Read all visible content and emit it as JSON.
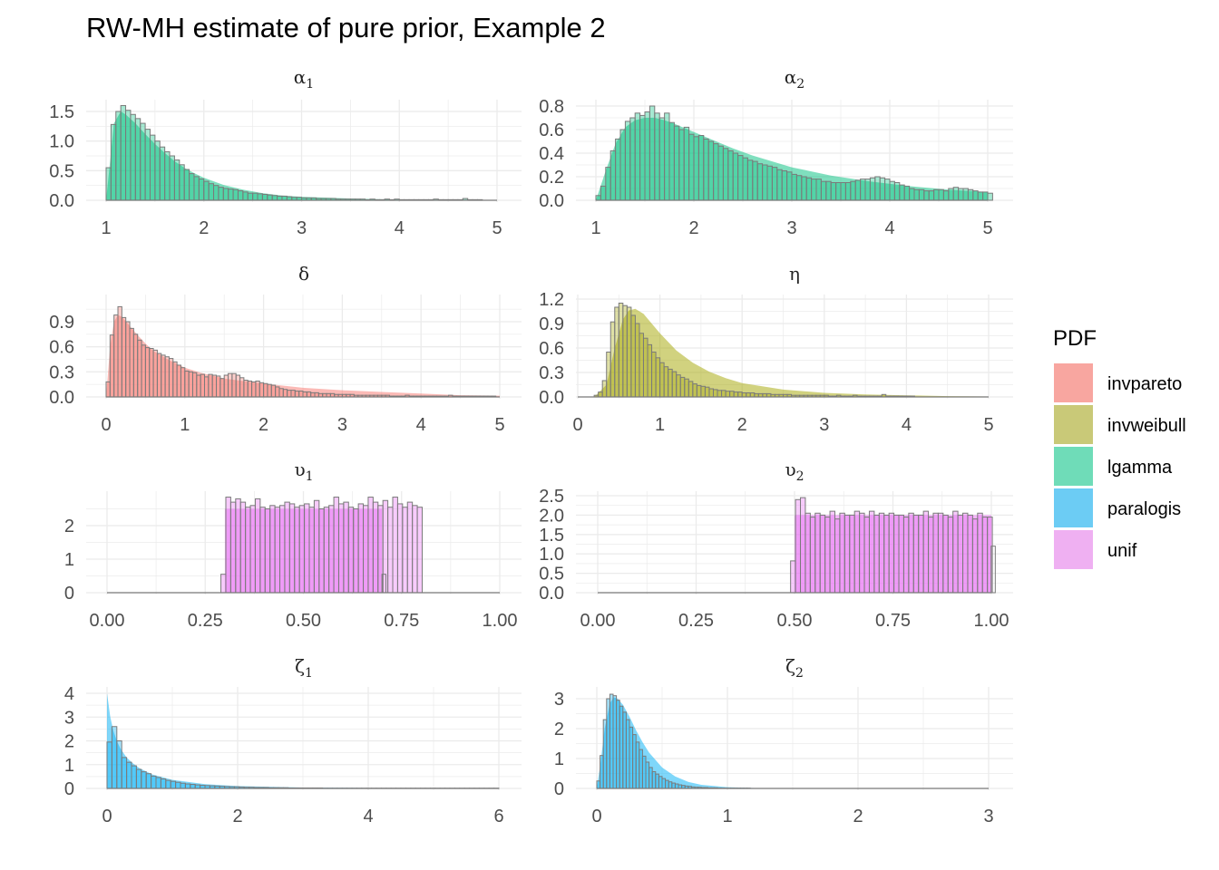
{
  "title": "RW-MH estimate of pure prior, Example 2",
  "legend": {
    "title": "PDF",
    "placement": "right",
    "entries": [
      {
        "label": "invpareto",
        "color": "#F8A6A0"
      },
      {
        "label": "invweibull",
        "color": "#C9C978"
      },
      {
        "label": "lgamma",
        "color": "#6FDCB8"
      },
      {
        "label": "paralogis",
        "color": "#6CCCF4"
      },
      {
        "label": "unif",
        "color": "#EFB0F2"
      }
    ]
  },
  "colors": {
    "invpareto": "#F8766D",
    "invweibull": "#A3A500",
    "lgamma": "#00BF7D",
    "paralogis": "#00B0F6",
    "unif": "#E76BF3",
    "histogram_outline": "#7a7a7a",
    "grid": "#ebebeb",
    "axis_text": "#4d4d4d"
  },
  "chart_data": [
    {
      "type": "histogram+density",
      "panel": "alpha1",
      "title": "α",
      "subscript": "1",
      "pdf": "lgamma",
      "xlim": [
        1,
        5
      ],
      "x_ticks": [
        1,
        2,
        3,
        4,
        5
      ],
      "x_tick_labels": [
        "1",
        "2",
        "3",
        "4",
        "5"
      ],
      "ylim": [
        0,
        1.6
      ],
      "y_ticks": [
        0,
        0.5,
        1.0,
        1.5
      ],
      "y_tick_labels": [
        "0.0",
        "0.5",
        "1.0",
        "1.5"
      ],
      "bin_start": 1.0,
      "bin_width": 0.05,
      "hist": [
        0.55,
        1.28,
        1.5,
        1.6,
        1.52,
        1.45,
        1.38,
        1.3,
        1.2,
        1.1,
        1.0,
        0.9,
        0.82,
        0.75,
        0.68,
        0.6,
        0.52,
        0.45,
        0.4,
        0.36,
        0.32,
        0.28,
        0.25,
        0.22,
        0.2,
        0.19,
        0.18,
        0.16,
        0.14,
        0.12,
        0.12,
        0.11,
        0.1,
        0.09,
        0.08,
        0.07,
        0.07,
        0.06,
        0.05,
        0.05,
        0.04,
        0.04,
        0.04,
        0.03,
        0.03,
        0.03,
        0.03,
        0.02,
        0.02,
        0.02,
        0.02,
        0.02,
        0.02,
        0.01,
        0.02,
        0.01,
        0.01,
        0.02,
        0.01,
        0.02,
        0.01,
        0.01,
        0.01,
        0.01,
        0.01,
        0.01,
        0.01,
        0.02,
        0.01,
        0.01,
        0.01,
        0.01,
        0.01,
        0.03,
        0.01,
        0.01,
        0.01,
        0.0,
        0.0,
        0.0
      ],
      "density_x": [
        1.0,
        1.08,
        1.15,
        1.2,
        1.3,
        1.4,
        1.5,
        1.6,
        1.7,
        1.8,
        1.9,
        2.0,
        2.2,
        2.4,
        2.6,
        2.8,
        3.0,
        3.5,
        4.0,
        4.5,
        5.0
      ],
      "density_y": [
        0.0,
        1.3,
        1.5,
        1.45,
        1.3,
        1.12,
        0.95,
        0.8,
        0.66,
        0.55,
        0.46,
        0.38,
        0.26,
        0.18,
        0.12,
        0.08,
        0.06,
        0.03,
        0.01,
        0.005,
        0.0
      ]
    },
    {
      "type": "histogram+density",
      "panel": "alpha2",
      "title": "α",
      "subscript": "2",
      "pdf": "lgamma",
      "xlim": [
        1,
        5
      ],
      "x_ticks": [
        1,
        2,
        3,
        4,
        5
      ],
      "x_tick_labels": [
        "1",
        "2",
        "3",
        "4",
        "5"
      ],
      "ylim": [
        0,
        0.8
      ],
      "y_ticks": [
        0,
        0.2,
        0.4,
        0.6,
        0.8
      ],
      "y_tick_labels": [
        "0.0",
        "0.2",
        "0.4",
        "0.6",
        "0.8"
      ],
      "bin_start": 1.0,
      "bin_width": 0.05,
      "hist": [
        0.04,
        0.12,
        0.28,
        0.42,
        0.52,
        0.6,
        0.67,
        0.7,
        0.74,
        0.72,
        0.75,
        0.8,
        0.74,
        0.7,
        0.74,
        0.66,
        0.63,
        0.6,
        0.62,
        0.56,
        0.54,
        0.55,
        0.52,
        0.5,
        0.48,
        0.46,
        0.44,
        0.42,
        0.4,
        0.38,
        0.36,
        0.34,
        0.33,
        0.31,
        0.3,
        0.29,
        0.28,
        0.26,
        0.25,
        0.24,
        0.22,
        0.21,
        0.2,
        0.19,
        0.18,
        0.18,
        0.16,
        0.16,
        0.15,
        0.15,
        0.15,
        0.15,
        0.16,
        0.17,
        0.18,
        0.18,
        0.19,
        0.2,
        0.19,
        0.18,
        0.16,
        0.15,
        0.13,
        0.12,
        0.1,
        0.09,
        0.09,
        0.08,
        0.08,
        0.09,
        0.09,
        0.08,
        0.1,
        0.11,
        0.1,
        0.1,
        0.09,
        0.08,
        0.07,
        0.07,
        0.06
      ],
      "density_x": [
        1.0,
        1.1,
        1.2,
        1.3,
        1.4,
        1.5,
        1.6,
        1.7,
        1.8,
        2.0,
        2.2,
        2.4,
        2.6,
        2.8,
        3.0,
        3.4,
        3.8,
        4.2,
        4.6,
        5.0
      ],
      "density_y": [
        0.0,
        0.25,
        0.48,
        0.62,
        0.68,
        0.7,
        0.7,
        0.68,
        0.65,
        0.58,
        0.51,
        0.44,
        0.38,
        0.33,
        0.28,
        0.21,
        0.16,
        0.12,
        0.09,
        0.07
      ]
    },
    {
      "type": "histogram+density",
      "panel": "delta",
      "title": "δ",
      "subscript": "",
      "pdf": "invpareto",
      "xlim": [
        0,
        5
      ],
      "x_ticks": [
        0,
        1,
        2,
        3,
        4,
        5
      ],
      "x_tick_labels": [
        "0",
        "1",
        "2",
        "3",
        "4",
        "5"
      ],
      "ylim": [
        0,
        1.0
      ],
      "y_ticks": [
        0,
        0.3,
        0.6,
        0.9
      ],
      "y_tick_labels": [
        "0.0",
        "0.3",
        "0.6",
        "0.9"
      ],
      "bin_start": 0.0,
      "bin_width": 0.05,
      "hist": [
        0.18,
        0.74,
        0.98,
        1.08,
        0.95,
        0.9,
        0.82,
        0.75,
        0.68,
        0.62,
        0.59,
        0.58,
        0.56,
        0.52,
        0.5,
        0.48,
        0.46,
        0.42,
        0.38,
        0.35,
        0.31,
        0.3,
        0.29,
        0.26,
        0.27,
        0.24,
        0.27,
        0.26,
        0.25,
        0.22,
        0.26,
        0.28,
        0.28,
        0.26,
        0.23,
        0.2,
        0.19,
        0.18,
        0.19,
        0.17,
        0.16,
        0.15,
        0.14,
        0.12,
        0.1,
        0.09,
        0.08,
        0.08,
        0.07,
        0.07,
        0.06,
        0.06,
        0.05,
        0.05,
        0.04,
        0.04,
        0.04,
        0.04,
        0.03,
        0.03,
        0.03,
        0.03,
        0.03,
        0.02,
        0.02,
        0.02,
        0.02,
        0.02,
        0.02,
        0.02,
        0.02,
        0.02,
        0.01,
        0.01,
        0.01,
        0.01,
        0.02,
        0.01,
        0.01,
        0.01,
        0.01,
        0.01,
        0.01,
        0.01,
        0.01,
        0.01,
        0.01,
        0.02,
        0.01,
        0.01,
        0.01,
        0.01,
        0.01,
        0.01,
        0.01,
        0.01,
        0.01,
        0.01,
        0.01,
        0.0
      ],
      "density_x": [
        0.0,
        0.05,
        0.1,
        0.15,
        0.2,
        0.3,
        0.4,
        0.5,
        0.6,
        0.8,
        1.0,
        1.2,
        1.5,
        2.0,
        2.5,
        3.0,
        3.5,
        4.0,
        4.5,
        5.0
      ],
      "density_y": [
        0.0,
        0.6,
        0.9,
        0.98,
        0.96,
        0.85,
        0.74,
        0.64,
        0.55,
        0.44,
        0.35,
        0.29,
        0.22,
        0.16,
        0.11,
        0.08,
        0.06,
        0.04,
        0.02,
        0.015
      ]
    },
    {
      "type": "histogram+density",
      "panel": "eta",
      "title": "η",
      "subscript": "",
      "pdf": "invweibull",
      "xlim": [
        0,
        5
      ],
      "x_ticks": [
        0,
        1,
        2,
        3,
        4,
        5
      ],
      "x_tick_labels": [
        "0",
        "1",
        "2",
        "3",
        "4",
        "5"
      ],
      "ylim": [
        0,
        1.2
      ],
      "y_ticks": [
        0,
        0.3,
        0.6,
        0.9,
        1.2
      ],
      "y_tick_labels": [
        "0.0",
        "0.3",
        "0.6",
        "0.9",
        "1.2"
      ],
      "bin_start": 0.2,
      "bin_width": 0.05,
      "hist": [
        0.02,
        0.06,
        0.2,
        0.55,
        0.92,
        1.1,
        1.15,
        1.12,
        1.1,
        1.0,
        0.9,
        0.78,
        0.72,
        0.64,
        0.55,
        0.48,
        0.42,
        0.37,
        0.34,
        0.31,
        0.27,
        0.24,
        0.22,
        0.19,
        0.16,
        0.14,
        0.13,
        0.12,
        0.1,
        0.09,
        0.08,
        0.08,
        0.07,
        0.07,
        0.06,
        0.06,
        0.05,
        0.05,
        0.05,
        0.04,
        0.04,
        0.04,
        0.04,
        0.03,
        0.03,
        0.03,
        0.03,
        0.03,
        0.02,
        0.02,
        0.02,
        0.02,
        0.02,
        0.02,
        0.02,
        0.02,
        0.02,
        0.01,
        0.01,
        0.02,
        0.01,
        0.01,
        0.01,
        0.02,
        0.01,
        0.01,
        0.01,
        0.01,
        0.01,
        0.01,
        0.03,
        0.01,
        0.01,
        0.01,
        0.01,
        0.01,
        0.01,
        0.01
      ],
      "density_x": [
        0.2,
        0.35,
        0.45,
        0.55,
        0.62,
        0.7,
        0.8,
        0.9,
        1.0,
        1.2,
        1.4,
        1.6,
        1.8,
        2.0,
        2.5,
        3.0,
        3.5,
        4.0,
        4.5,
        5.0
      ],
      "density_y": [
        0.0,
        0.15,
        0.6,
        0.95,
        1.06,
        1.08,
        1.02,
        0.9,
        0.78,
        0.57,
        0.42,
        0.31,
        0.23,
        0.17,
        0.09,
        0.05,
        0.03,
        0.02,
        0.01,
        0.005
      ]
    },
    {
      "type": "histogram+density",
      "panel": "upsilon1",
      "title": "υ",
      "subscript": "1",
      "pdf": "unif",
      "xlim": [
        0,
        1
      ],
      "x_ticks": [
        0,
        0.25,
        0.5,
        0.75,
        1.0
      ],
      "x_tick_labels": [
        "0.00",
        "0.25",
        "0.50",
        "0.75",
        "1.00"
      ],
      "ylim": [
        0,
        3
      ],
      "y_ticks": [
        0,
        1,
        2
      ],
      "y_tick_labels": [
        "0",
        "1",
        "2"
      ],
      "bin_start": 0.29,
      "bin_width": 0.0125,
      "hist": [
        0.55,
        2.85,
        2.7,
        2.8,
        2.7,
        2.55,
        2.6,
        2.8,
        2.55,
        2.5,
        2.6,
        2.55,
        2.6,
        2.7,
        2.65,
        2.55,
        2.6,
        2.65,
        2.55,
        2.75,
        2.5,
        2.55,
        2.6,
        2.85,
        2.65,
        2.7,
        2.55,
        2.5,
        2.65,
        2.6,
        2.85,
        2.7,
        2.6,
        2.75,
        2.55,
        2.85,
        2.65,
        2.55,
        2.7,
        2.6,
        2.55
      ],
      "hist_tail": {
        "x0": 0.7,
        "x1": 0.71,
        "value": 0.55
      },
      "density_x": [
        0.3,
        0.7
      ],
      "density_y": [
        2.5,
        2.5
      ]
    },
    {
      "type": "histogram+density",
      "panel": "upsilon2",
      "title": "υ",
      "subscript": "2",
      "pdf": "unif",
      "xlim": [
        0,
        1
      ],
      "x_ticks": [
        0,
        0.25,
        0.5,
        0.75,
        1.0
      ],
      "x_tick_labels": [
        "0.00",
        "0.25",
        "0.50",
        "0.75",
        "1.00"
      ],
      "ylim": [
        0,
        2.6
      ],
      "y_ticks": [
        0,
        0.5,
        1.0,
        1.5,
        2.0,
        2.5
      ],
      "y_tick_labels": [
        "0.0",
        "0.5",
        "1.0",
        "1.5",
        "2.0",
        "2.5"
      ],
      "bin_start": 0.49,
      "bin_width": 0.0125,
      "hist": [
        0.82,
        2.4,
        2.45,
        2.05,
        1.95,
        2.05,
        2.0,
        1.95,
        2.1,
        1.9,
        2.05,
        2.0,
        2.0,
        2.1,
        2.05,
        1.95,
        2.1,
        2.0,
        2.05,
        2.0,
        2.05,
        2.0,
        2.0,
        1.95,
        2.05,
        2.0,
        2.0,
        2.1,
        1.95,
        2.05,
        2.05,
        2.0,
        1.95,
        2.1,
        2.0,
        2.05,
        2.0,
        1.9,
        2.05,
        1.95,
        1.95
      ],
      "hist_tail": {
        "x0": 0.9995,
        "x1": 1.01,
        "value": 1.2
      },
      "density_x": [
        0.5,
        1.0
      ],
      "density_y": [
        2.0,
        2.0
      ]
    },
    {
      "type": "histogram+density",
      "panel": "zeta1",
      "title": "ζ",
      "subscript": "1",
      "pdf": "paralogis",
      "xlim": [
        0,
        6
      ],
      "x_ticks": [
        0,
        2,
        4,
        6
      ],
      "x_tick_labels": [
        "0",
        "2",
        "4",
        "6"
      ],
      "ylim": [
        0,
        4.1
      ],
      "y_ticks": [
        0,
        1,
        2,
        3,
        4
      ],
      "y_tick_labels": [
        "0",
        "1",
        "2",
        "3",
        "4"
      ],
      "bin_start": 0.0,
      "bin_width": 0.075,
      "hist": [
        1.95,
        2.6,
        2.0,
        1.3,
        1.1,
        0.95,
        0.8,
        0.7,
        0.62,
        0.52,
        0.46,
        0.4,
        0.34,
        0.3,
        0.26,
        0.22,
        0.19,
        0.17,
        0.15,
        0.13,
        0.12,
        0.11,
        0.1,
        0.09,
        0.08,
        0.07,
        0.07,
        0.06,
        0.05,
        0.05,
        0.04,
        0.04,
        0.04,
        0.03,
        0.03,
        0.03,
        0.03,
        0.02,
        0.02,
        0.02,
        0.02,
        0.02,
        0.02,
        0.02,
        0.01,
        0.01,
        0.01,
        0.01,
        0.01,
        0.01,
        0.01,
        0.01,
        0.01,
        0.01,
        0.01,
        0.01,
        0.01,
        0.01,
        0.01,
        0.01,
        0.01,
        0.01,
        0.01,
        0.01,
        0.01,
        0.01,
        0.01,
        0.01,
        0.01,
        0.01,
        0.01,
        0.01,
        0.01,
        0.01,
        0.01,
        0.01,
        0.01,
        0.01,
        0.01,
        0.01
      ],
      "density_x": [
        0.0,
        0.02,
        0.05,
        0.1,
        0.15,
        0.2,
        0.3,
        0.4,
        0.5,
        0.7,
        1.0,
        1.5,
        2.0,
        3.0,
        4.0,
        5.0,
        6.0
      ],
      "density_y": [
        4.0,
        3.6,
        3.0,
        2.4,
        2.0,
        1.7,
        1.3,
        1.05,
        0.85,
        0.58,
        0.36,
        0.18,
        0.1,
        0.04,
        0.02,
        0.01,
        0.005
      ]
    },
    {
      "type": "histogram+density",
      "panel": "zeta2",
      "title": "ζ",
      "subscript": "2",
      "pdf": "paralogis",
      "xlim": [
        0,
        3
      ],
      "x_ticks": [
        0,
        1,
        2,
        3
      ],
      "x_tick_labels": [
        "0",
        "1",
        "2",
        "3"
      ],
      "ylim": [
        0,
        3.3
      ],
      "y_ticks": [
        0,
        1,
        2,
        3
      ],
      "y_tick_labels": [
        "0",
        "1",
        "2",
        "3"
      ],
      "bin_start": 0.0,
      "bin_width": 0.025,
      "hist": [
        0.25,
        1.1,
        2.3,
        3.0,
        3.15,
        3.1,
        2.95,
        2.75,
        2.55,
        2.3,
        2.05,
        1.8,
        1.55,
        1.3,
        1.08,
        0.88,
        0.7,
        0.56,
        0.48,
        0.4,
        0.33,
        0.27,
        0.22,
        0.18,
        0.15,
        0.12,
        0.1,
        0.08,
        0.07,
        0.05,
        0.04,
        0.04,
        0.03,
        0.03,
        0.02,
        0.02,
        0.02,
        0.01,
        0.01,
        0.01,
        0.01,
        0.01,
        0.01,
        0.01,
        0.01,
        0.01,
        0.01,
        0.0,
        0.0,
        0.0
      ],
      "density_x": [
        0.0,
        0.03,
        0.06,
        0.1,
        0.13,
        0.16,
        0.2,
        0.25,
        0.3,
        0.35,
        0.4,
        0.5,
        0.6,
        0.7,
        0.8,
        1.0,
        1.2,
        1.5,
        2.0,
        3.0
      ],
      "density_y": [
        0.0,
        0.9,
        2.0,
        2.85,
        3.05,
        3.0,
        2.8,
        2.4,
        1.95,
        1.55,
        1.2,
        0.7,
        0.4,
        0.22,
        0.12,
        0.04,
        0.015,
        0.005,
        0.0,
        0.0
      ]
    }
  ]
}
